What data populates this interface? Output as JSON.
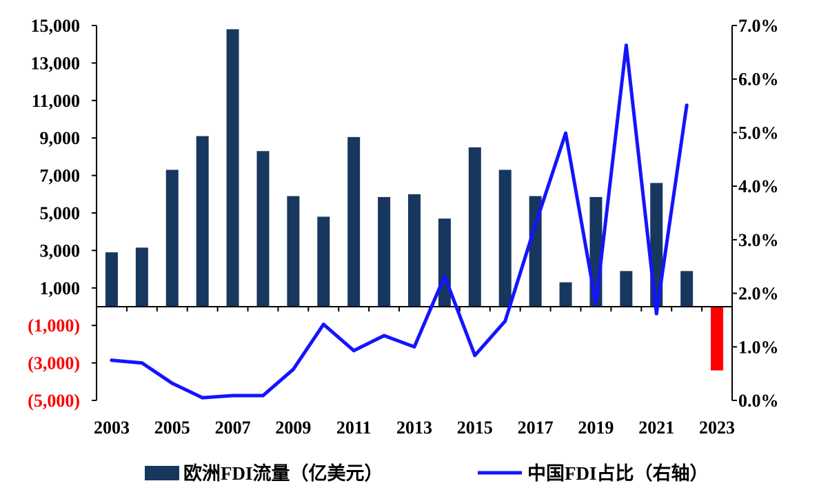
{
  "chart_data": {
    "type": "bar",
    "categories": [
      "2003",
      "2004",
      "2005",
      "2006",
      "2007",
      "2008",
      "2009",
      "2010",
      "2011",
      "2012",
      "2013",
      "2014",
      "2015",
      "2016",
      "2017",
      "2018",
      "2019",
      "2020",
      "2021",
      "2022",
      "2023"
    ],
    "x_tick_labels": [
      "2003",
      "2005",
      "2007",
      "2009",
      "2011",
      "2013",
      "2015",
      "2017",
      "2019",
      "2021",
      "2023"
    ],
    "series": [
      {
        "name": "欧洲FDI流量（亿美元）",
        "type": "bar",
        "axis": "left",
        "values": [
          2900,
          3150,
          7300,
          9100,
          14800,
          8300,
          5900,
          4800,
          9050,
          5850,
          6000,
          4700,
          8500,
          7300,
          5900,
          1300,
          5850,
          1900,
          6600,
          1900,
          -3400
        ]
      },
      {
        "name": "中国FDI占比（右轴）",
        "type": "line",
        "axis": "right",
        "values": [
          0.75,
          0.7,
          0.32,
          0.05,
          0.09,
          0.09,
          0.58,
          1.42,
          0.93,
          1.21,
          1.0,
          2.32,
          0.84,
          1.48,
          3.28,
          4.99,
          1.8,
          6.63,
          1.62,
          5.51,
          null
        ]
      }
    ],
    "left_axis": {
      "ylim": [
        -5000,
        15000
      ],
      "ticks": [
        15000,
        13000,
        11000,
        9000,
        7000,
        5000,
        3000,
        1000,
        -1000,
        -3000,
        -5000
      ],
      "tick_labels": [
        "15,000",
        "13,000",
        "11,000",
        "9,000",
        "7,000",
        "5,000",
        "3,000",
        "1,000",
        "(1,000)",
        "(3,000)",
        "(5,000)"
      ]
    },
    "right_axis": {
      "ylim": [
        0,
        7
      ],
      "ticks": [
        0,
        1,
        2,
        3,
        4,
        5,
        6,
        7
      ],
      "tick_labels": [
        "0.0%",
        "1.0%",
        "2.0%",
        "3.0%",
        "4.0%",
        "5.0%",
        "6.0%",
        "7.0%"
      ]
    },
    "grid": false,
    "legend_position": "bottom",
    "colors": {
      "bar": "#17375E",
      "negative_bar": "#FF0000",
      "line": "#1414FF",
      "negative_tick_label": "#FF0000",
      "tick_label": "#000000"
    }
  }
}
